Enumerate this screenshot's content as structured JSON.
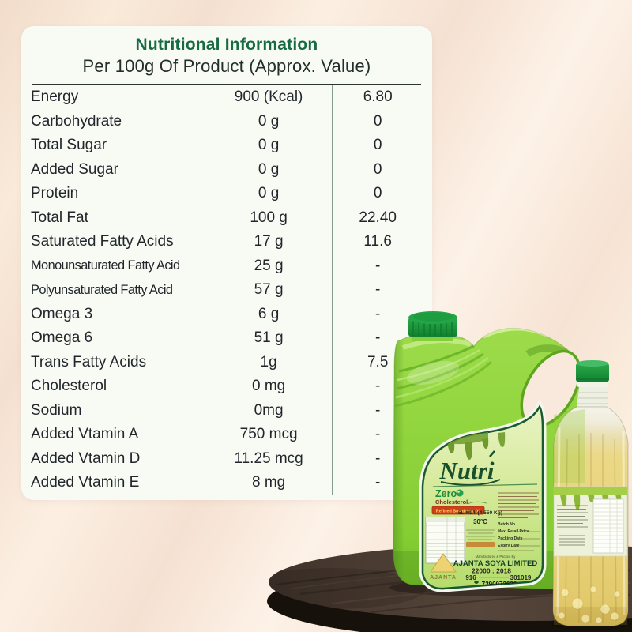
{
  "nutrition_card": {
    "title": "Nutritional Information",
    "subtitle": "Per 100g Of Product (Approx. Value)",
    "rows": [
      {
        "label": "Energy",
        "amount": "900 (Kcal)",
        "value": "6.80"
      },
      {
        "label": "Carbohydrate",
        "amount": "0 g",
        "value": "0"
      },
      {
        "label": "Total Sugar",
        "amount": "0 g",
        "value": "0"
      },
      {
        "label": "Added Sugar",
        "amount": "0 g",
        "value": "0"
      },
      {
        "label": "Protein",
        "amount": "0 g",
        "value": "0"
      },
      {
        "label": "Total Fat",
        "amount": "100 g",
        "value": "22.40"
      },
      {
        "label": "Saturated Fatty Acids",
        "amount": "17 g",
        "value": "11.6"
      },
      {
        "label": "Monounsaturated Fatty Acid",
        "amount": "25 g",
        "value": "-"
      },
      {
        "label": "Polyunsaturated Fatty Acid",
        "amount": "57 g",
        "value": "-"
      },
      {
        "label": "Omega 3",
        "amount": "6 g",
        "value": "-"
      },
      {
        "label": "Omega 6",
        "amount": "51 g",
        "value": "-"
      },
      {
        "label": "Trans Fatty Acids",
        "amount": "1g",
        "value": "7.5"
      },
      {
        "label": "Cholesterol",
        "amount": "0 mg",
        "value": "-"
      },
      {
        "label": "Sodium",
        "amount": "0mg",
        "value": "-"
      },
      {
        "label": "Added Vtamin A",
        "amount": "750 mcg",
        "value": "-"
      },
      {
        "label": "Added Vtamin D",
        "amount": "11.25 mcg",
        "value": "-"
      },
      {
        "label": "Added Vtamin E",
        "amount": "8 mg",
        "value": "-"
      }
    ]
  },
  "product": {
    "can": {
      "brand": "Nutri",
      "zero": "Zero",
      "cholesterol": "Cholesterol",
      "band": "Refined Soyabean Oil",
      "net_quantity": "5L NET (4.550 Kg)",
      "storage_temp": "30°C",
      "batch_label": "Batch No.",
      "mrp_label": "Max. Retail Price",
      "packing_label": "Packing Date",
      "expiry_label": "Expiry Date",
      "made_by": "Manufactured & Packed By",
      "manufacturer": "AJANTA SOYA LIMITED",
      "cert_number": "22000 : 2018",
      "code_left": "916",
      "code_right": "301019",
      "phone": "7290072626",
      "logo_text": "AJANTA"
    }
  },
  "colors": {
    "title_green": "#176b43",
    "can_green": "#94d63e",
    "cap_green": "#1b9c3e",
    "oil_yellow": "#e9d27b",
    "band_red": "#d04018",
    "wood_brown": "#4a3b30",
    "background_peach": "#f7e5d6"
  }
}
